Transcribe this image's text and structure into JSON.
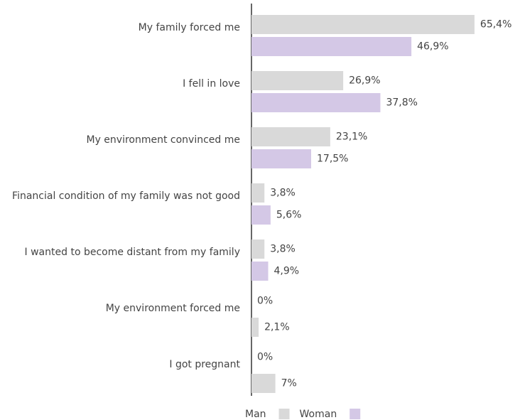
{
  "chart_data": {
    "type": "bar",
    "orientation": "horizontal",
    "categories": [
      "My family forced me",
      "I fell in love",
      "My environment convinced me",
      "Financial condition of my family was not good",
      "I wanted to become distant from my family",
      "My environment forced me",
      "I got pregnant"
    ],
    "series": [
      {
        "name": "Man",
        "color": "#d9d9d9",
        "values": [
          65.4,
          26.9,
          23.1,
          3.8,
          3.8,
          0,
          0
        ],
        "value_labels": [
          "65,4%",
          "26,9%",
          "23,1%",
          "3,8%",
          "3,8%",
          "0%",
          "0%"
        ]
      },
      {
        "name": "Woman",
        "color": "#d4c8e6",
        "colors": [
          "#d4c8e6",
          "#d4c8e6",
          "#d4c8e6",
          "#d4c8e6",
          "#d4c8e6",
          "#d9d9d9",
          "#d9d9d9"
        ],
        "values": [
          46.9,
          37.8,
          17.5,
          5.6,
          4.9,
          2.1,
          7
        ],
        "value_labels": [
          "46,9%",
          "37,8%",
          "17,5%",
          "5,6%",
          "4,9%",
          "2,1%",
          "7%"
        ]
      }
    ],
    "legend": "bottom"
  }
}
